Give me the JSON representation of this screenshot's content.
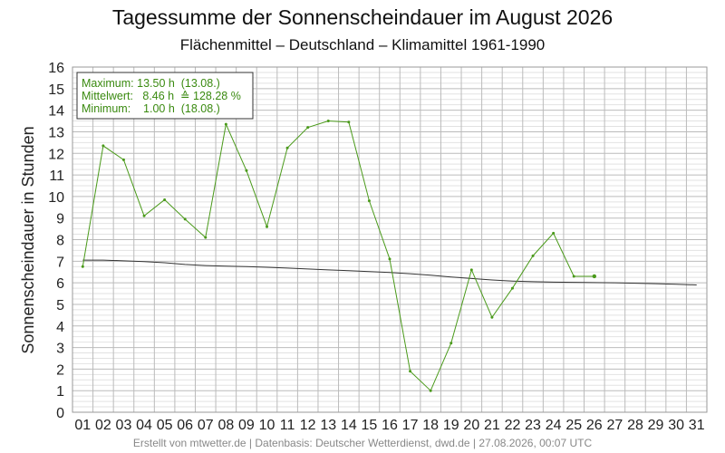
{
  "header": {
    "title": "Tagessumme der Sonnenscheindauer im August 2026",
    "subtitle": "Flächenmittel – Deutschland – Klimamittel 1961-1990"
  },
  "footer": {
    "text": "Erstellt von mtwetter.de | Datenbasis: Deutscher Wetterdienst, dwd.de | 27.08.2026, 00:07 UTC"
  },
  "stats": {
    "line1": "Maximum: 13.50 h  (13.08.)",
    "line2": "Mittelwert:   8.46 h  ≙ 128.28 %",
    "line3": "Minimum:    1.00 h  (18.08.)"
  },
  "colors": {
    "series": "#4a9a1a",
    "climate": "#333333",
    "grid_major": "#bbbbbb",
    "grid_minor": "#e2e2e2",
    "stats_text": "#3a8a10"
  },
  "chart_data": {
    "type": "line",
    "title": "Tagessumme der Sonnenscheindauer im August 2026",
    "subtitle": "Flächenmittel – Deutschland – Klimamittel 1961-1990",
    "xlabel": "",
    "ylabel": "Sonnenscheindauer in Stunden",
    "ylim": [
      0,
      16
    ],
    "xlim": [
      0.5,
      31.5
    ],
    "grid": true,
    "x_tick_labels": [
      "01",
      "02",
      "03",
      "04",
      "05",
      "06",
      "07",
      "08",
      "09",
      "10",
      "11",
      "12",
      "13",
      "14",
      "15",
      "16",
      "17",
      "18",
      "19",
      "20",
      "21",
      "22",
      "23",
      "24",
      "25",
      "26",
      "27",
      "28",
      "29",
      "30",
      "31"
    ],
    "y_ticks": [
      0,
      1,
      2,
      3,
      4,
      5,
      6,
      7,
      8,
      9,
      10,
      11,
      12,
      13,
      14,
      15,
      16
    ],
    "series": [
      {
        "kind": "daily",
        "x": [
          1,
          2,
          3,
          4,
          5,
          6,
          7,
          8,
          9,
          10,
          11,
          12,
          13,
          14,
          15,
          16,
          17,
          18,
          19,
          20,
          21,
          22,
          23,
          24,
          25,
          26
        ],
        "values": [
          6.75,
          12.35,
          11.7,
          9.1,
          9.85,
          8.95,
          8.1,
          13.35,
          11.2,
          8.6,
          12.25,
          13.2,
          13.5,
          13.45,
          9.8,
          7.1,
          1.9,
          1.0,
          3.2,
          6.6,
          4.4,
          5.75,
          7.25,
          8.3,
          6.3,
          6.3
        ]
      },
      {
        "kind": "climate-mean",
        "x": [
          1,
          2,
          3,
          4,
          5,
          6,
          7,
          8,
          9,
          10,
          11,
          12,
          13,
          14,
          15,
          16,
          17,
          18,
          19,
          20,
          21,
          22,
          23,
          24,
          25,
          26,
          27,
          28,
          29,
          30,
          31
        ],
        "values": [
          7.05,
          7.05,
          7.02,
          6.98,
          6.93,
          6.85,
          6.8,
          6.77,
          6.75,
          6.72,
          6.68,
          6.64,
          6.6,
          6.56,
          6.52,
          6.48,
          6.42,
          6.35,
          6.27,
          6.2,
          6.13,
          6.08,
          6.05,
          6.03,
          6.02,
          6.01,
          6.0,
          5.98,
          5.96,
          5.93,
          5.9
        ]
      }
    ]
  }
}
